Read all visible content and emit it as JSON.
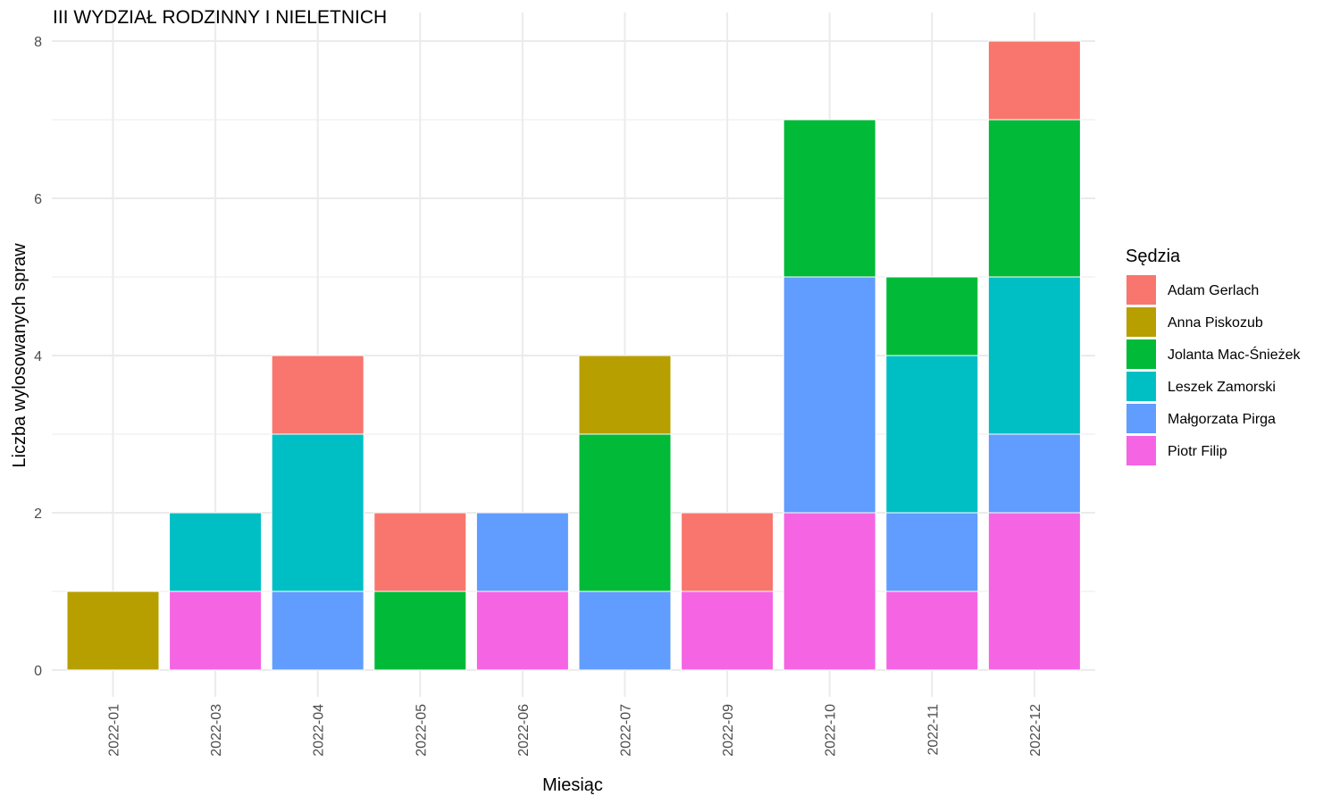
{
  "chart_data": {
    "type": "bar",
    "stacked": true,
    "title": "III WYDZIAŁ RODZINNY I NIELETNICH",
    "xlabel": "Miesiąc",
    "ylabel": "Liczba wylosowanych spraw",
    "ylim": [
      0,
      8
    ],
    "yticks": [
      "0",
      "2",
      "4",
      "6",
      "8"
    ],
    "grid": true,
    "legend_title": "Sędzia",
    "legend_position": "right",
    "categories": [
      "2022-01",
      "2022-03",
      "2022-04",
      "2022-05",
      "2022-06",
      "2022-07",
      "2022-09",
      "2022-10",
      "2022-11",
      "2022-12"
    ],
    "series": [
      {
        "name": "Piotr Filip",
        "color": "#F564E3",
        "values": [
          0,
          1,
          0,
          0,
          1,
          0,
          1,
          2,
          1,
          2
        ]
      },
      {
        "name": "Małgorzata Pirga",
        "color": "#619CFF",
        "values": [
          0,
          0,
          1,
          0,
          1,
          1,
          0,
          3,
          1,
          1
        ]
      },
      {
        "name": "Leszek Zamorski",
        "color": "#00BFC4",
        "values": [
          0,
          1,
          2,
          0,
          0,
          0,
          0,
          0,
          2,
          2
        ]
      },
      {
        "name": "Jolanta Mac-Śnieżek",
        "color": "#00BA38",
        "values": [
          0,
          0,
          0,
          1,
          0,
          2,
          0,
          2,
          1,
          2
        ]
      },
      {
        "name": "Anna Piskozub",
        "color": "#B79F00",
        "values": [
          1,
          0,
          0,
          0,
          0,
          1,
          0,
          0,
          0,
          0
        ]
      },
      {
        "name": "Adam Gerlach",
        "color": "#F8766D",
        "values": [
          0,
          0,
          1,
          1,
          0,
          0,
          1,
          0,
          0,
          1
        ]
      }
    ]
  }
}
